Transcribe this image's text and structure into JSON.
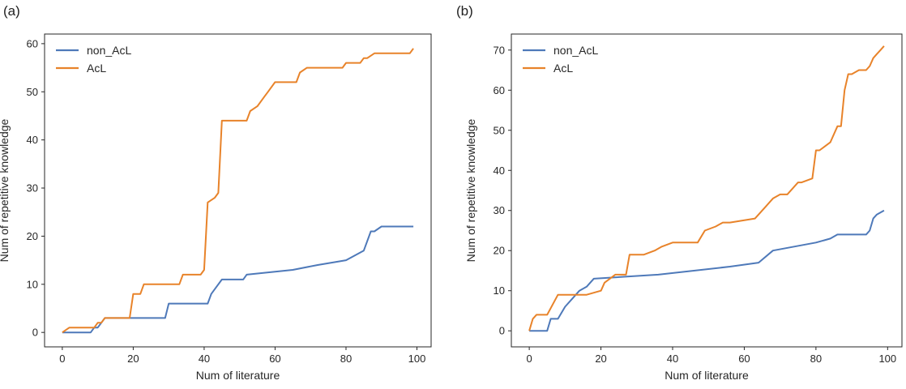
{
  "colors": {
    "non_AcL": "#4e79b9",
    "AcL": "#e8832a",
    "axis": "#262626"
  },
  "panels": [
    {
      "label": "(a)"
    },
    {
      "label": "(b)"
    }
  ],
  "chart_data": [
    {
      "type": "line",
      "panel_label": "(a)",
      "xlabel": "Num of literature",
      "ylabel": "Num of repetitive knowledge",
      "xlim": [
        -5,
        104
      ],
      "ylim": [
        -3,
        62
      ],
      "xticks": [
        0,
        20,
        40,
        60,
        80,
        100
      ],
      "yticks": [
        0,
        10,
        20,
        30,
        40,
        50,
        60
      ],
      "legend_placement": "upper-left",
      "grid": false,
      "series": [
        {
          "name": "non_AcL",
          "x": [
            0,
            8,
            9,
            10,
            12,
            19,
            29,
            30,
            41,
            42,
            43,
            45,
            51,
            52,
            65,
            72,
            80,
            85,
            87,
            88,
            90,
            99
          ],
          "y": [
            0,
            0,
            1,
            1,
            3,
            3,
            3,
            6,
            6,
            8,
            9,
            11,
            11,
            12,
            13,
            14,
            15,
            17,
            21,
            21,
            22,
            22
          ]
        },
        {
          "name": "AcL",
          "x": [
            0,
            2,
            9,
            10,
            11,
            12,
            19,
            20,
            22,
            23,
            33,
            34,
            39,
            40,
            41,
            43,
            44,
            45,
            52,
            53,
            55,
            57,
            58,
            60,
            66,
            67,
            69,
            79,
            80,
            84,
            85,
            86,
            88,
            98,
            99
          ],
          "y": [
            0,
            1,
            1,
            2,
            2,
            3,
            3,
            8,
            8,
            10,
            10,
            12,
            12,
            13,
            27,
            28,
            29,
            44,
            44,
            46,
            47,
            49,
            50,
            52,
            52,
            54,
            55,
            55,
            56,
            56,
            57,
            57,
            58,
            58,
            59
          ]
        }
      ]
    },
    {
      "type": "line",
      "panel_label": "(b)",
      "xlabel": "Num of literature",
      "ylabel": "Num of repetitive knowledge",
      "xlim": [
        -5,
        104
      ],
      "ylim": [
        -4,
        74
      ],
      "xticks": [
        0,
        20,
        40,
        60,
        80,
        100
      ],
      "yticks": [
        0,
        10,
        20,
        30,
        40,
        50,
        60,
        70
      ],
      "legend_placement": "upper-left",
      "grid": false,
      "series": [
        {
          "name": "non_AcL",
          "x": [
            0,
            5,
            6,
            8,
            10,
            12,
            14,
            16,
            18,
            36,
            56,
            64,
            68,
            80,
            84,
            86,
            94,
            95,
            96,
            97,
            99
          ],
          "y": [
            0,
            0,
            3,
            3,
            6,
            8,
            10,
            11,
            13,
            14,
            16,
            17,
            20,
            22,
            23,
            24,
            24,
            25,
            28,
            29,
            30
          ]
        },
        {
          "name": "AcL",
          "x": [
            0,
            1,
            2,
            5,
            8,
            10,
            16,
            20,
            21,
            24,
            27,
            28,
            32,
            35,
            37,
            40,
            47,
            49,
            52,
            54,
            56,
            63,
            66,
            68,
            70,
            72,
            75,
            76,
            79,
            80,
            81,
            84,
            86,
            87,
            88,
            89,
            90,
            92,
            94,
            95,
            96,
            97,
            98,
            99
          ],
          "y": [
            0,
            3,
            4,
            4,
            9,
            9,
            9,
            10,
            12,
            14,
            14,
            19,
            19,
            20,
            21,
            22,
            22,
            25,
            26,
            27,
            27,
            28,
            31,
            33,
            34,
            34,
            37,
            37,
            38,
            45,
            45,
            47,
            51,
            51,
            60,
            64,
            64,
            65,
            65,
            66,
            68,
            69,
            70,
            71
          ]
        }
      ]
    }
  ]
}
